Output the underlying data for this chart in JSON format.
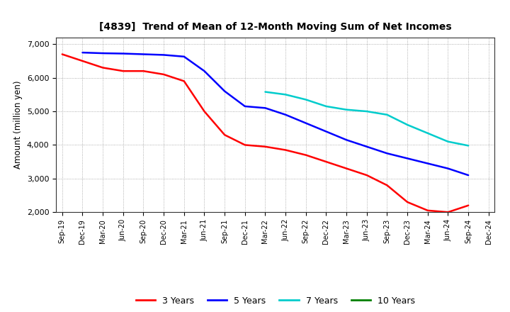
{
  "title": "[4839]  Trend of Mean of 12-Month Moving Sum of Net Incomes",
  "ylabel": "Amount (million yen)",
  "background_color": "#ffffff",
  "grid_color": "#aaaaaa",
  "ylim": [
    2000,
    7200
  ],
  "yticks": [
    2000,
    3000,
    4000,
    5000,
    6000,
    7000
  ],
  "series": {
    "3 Years": {
      "color": "#ff0000",
      "data": [
        [
          "Sep-19",
          6700
        ],
        [
          "Dec-19",
          6500
        ],
        [
          "Mar-20",
          6300
        ],
        [
          "Jun-20",
          6200
        ],
        [
          "Sep-20",
          6200
        ],
        [
          "Dec-20",
          6100
        ],
        [
          "Mar-21",
          5900
        ],
        [
          "Jun-21",
          5000
        ],
        [
          "Sep-21",
          4300
        ],
        [
          "Dec-21",
          4000
        ],
        [
          "Mar-22",
          3950
        ],
        [
          "Jun-22",
          3850
        ],
        [
          "Sep-22",
          3700
        ],
        [
          "Dec-22",
          3500
        ],
        [
          "Mar-23",
          3300
        ],
        [
          "Jun-23",
          3100
        ],
        [
          "Sep-23",
          2800
        ],
        [
          "Dec-23",
          2300
        ],
        [
          "Mar-24",
          2050
        ],
        [
          "Jun-24",
          2000
        ],
        [
          "Sep-24",
          2200
        ],
        [
          "Dec-24",
          null
        ]
      ]
    },
    "5 Years": {
      "color": "#0000ff",
      "data": [
        [
          "Sep-19",
          null
        ],
        [
          "Dec-19",
          6750
        ],
        [
          "Mar-20",
          6730
        ],
        [
          "Jun-20",
          6720
        ],
        [
          "Sep-20",
          6700
        ],
        [
          "Dec-20",
          6680
        ],
        [
          "Mar-21",
          6630
        ],
        [
          "Jun-21",
          6200
        ],
        [
          "Sep-21",
          5600
        ],
        [
          "Dec-21",
          5150
        ],
        [
          "Mar-22",
          5100
        ],
        [
          "Jun-22",
          4900
        ],
        [
          "Sep-22",
          4650
        ],
        [
          "Dec-22",
          4400
        ],
        [
          "Mar-23",
          4150
        ],
        [
          "Jun-23",
          3950
        ],
        [
          "Sep-23",
          3750
        ],
        [
          "Dec-23",
          3600
        ],
        [
          "Mar-24",
          3450
        ],
        [
          "Jun-24",
          3300
        ],
        [
          "Sep-24",
          3100
        ],
        [
          "Dec-24",
          null
        ]
      ]
    },
    "7 Years": {
      "color": "#00cccc",
      "data": [
        [
          "Sep-19",
          null
        ],
        [
          "Dec-19",
          null
        ],
        [
          "Mar-20",
          null
        ],
        [
          "Jun-20",
          null
        ],
        [
          "Sep-20",
          null
        ],
        [
          "Dec-20",
          null
        ],
        [
          "Mar-21",
          null
        ],
        [
          "Jun-21",
          null
        ],
        [
          "Sep-21",
          null
        ],
        [
          "Dec-21",
          null
        ],
        [
          "Mar-22",
          5580
        ],
        [
          "Jun-22",
          5500
        ],
        [
          "Sep-22",
          5350
        ],
        [
          "Dec-22",
          5150
        ],
        [
          "Mar-23",
          5050
        ],
        [
          "Jun-23",
          5000
        ],
        [
          "Sep-23",
          4900
        ],
        [
          "Dec-23",
          4600
        ],
        [
          "Mar-24",
          4350
        ],
        [
          "Jun-24",
          4100
        ],
        [
          "Sep-24",
          3980
        ],
        [
          "Dec-24",
          null
        ]
      ]
    },
    "10 Years": {
      "color": "#008000",
      "data": [
        [
          "Sep-19",
          null
        ],
        [
          "Dec-19",
          null
        ],
        [
          "Mar-20",
          null
        ],
        [
          "Jun-20",
          null
        ],
        [
          "Sep-20",
          null
        ],
        [
          "Dec-20",
          null
        ],
        [
          "Mar-21",
          null
        ],
        [
          "Jun-21",
          null
        ],
        [
          "Sep-21",
          null
        ],
        [
          "Dec-21",
          null
        ],
        [
          "Mar-22",
          null
        ],
        [
          "Jun-22",
          null
        ],
        [
          "Sep-22",
          null
        ],
        [
          "Dec-22",
          null
        ],
        [
          "Mar-23",
          null
        ],
        [
          "Jun-23",
          null
        ],
        [
          "Sep-23",
          null
        ],
        [
          "Dec-23",
          null
        ],
        [
          "Mar-24",
          null
        ],
        [
          "Jun-24",
          null
        ],
        [
          "Sep-24",
          null
        ],
        [
          "Dec-24",
          null
        ]
      ]
    }
  },
  "x_labels": [
    "Sep-19",
    "Dec-19",
    "Mar-20",
    "Jun-20",
    "Sep-20",
    "Dec-20",
    "Mar-21",
    "Jun-21",
    "Sep-21",
    "Dec-21",
    "Mar-22",
    "Jun-22",
    "Sep-22",
    "Dec-22",
    "Mar-23",
    "Jun-23",
    "Sep-23",
    "Dec-23",
    "Mar-24",
    "Jun-24",
    "Sep-24",
    "Dec-24"
  ],
  "legend_entries": [
    "3 Years",
    "5 Years",
    "7 Years",
    "10 Years"
  ],
  "legend_colors": [
    "#ff0000",
    "#0000ff",
    "#00cccc",
    "#008000"
  ]
}
